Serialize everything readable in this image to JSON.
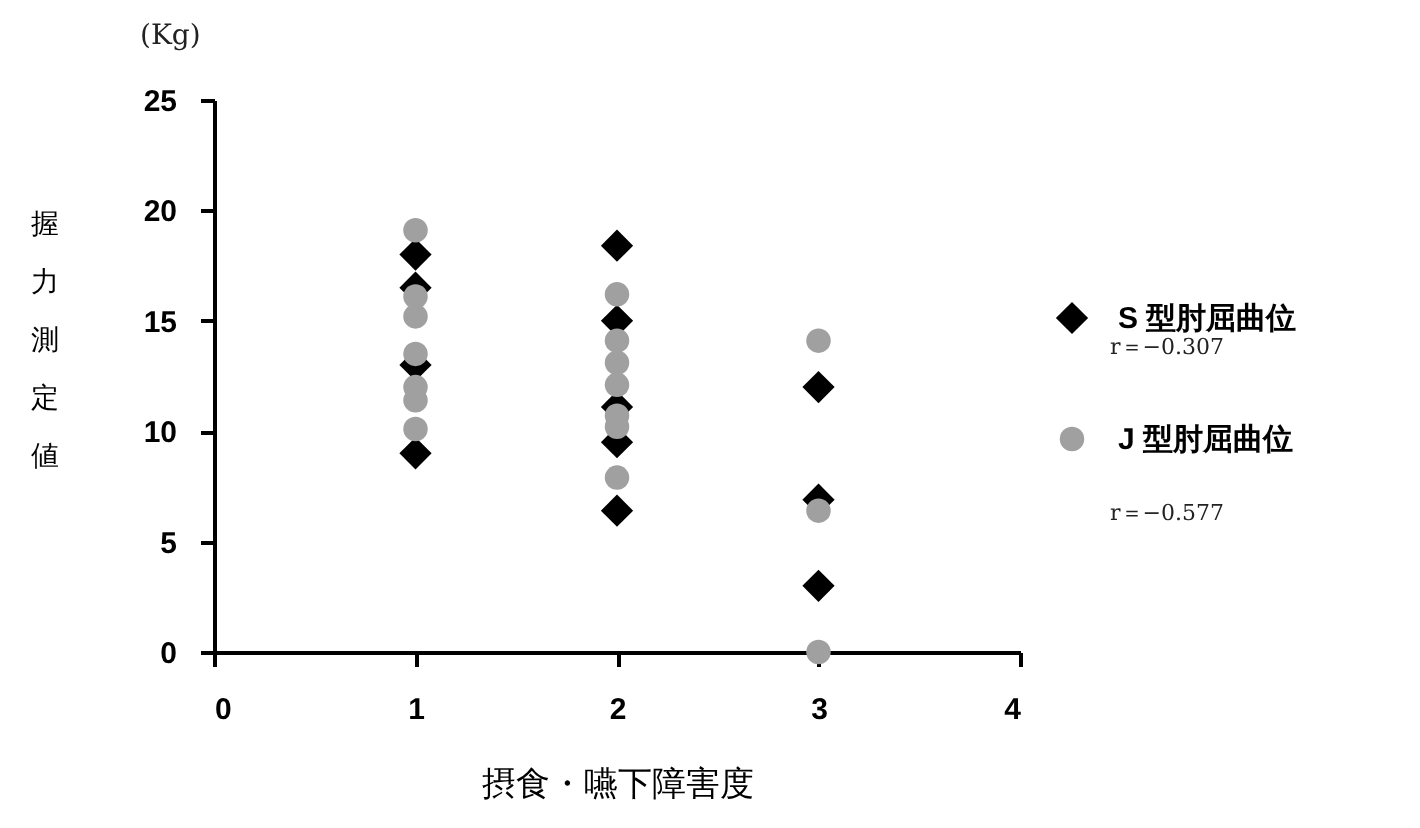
{
  "chart_data": {
    "type": "scatter",
    "xlabel": "摂食・嚥下障害度",
    "ylabel": "握力測定値",
    "annotations": [
      "(Kg)",
      "r＝−0.307",
      "r＝−0.577"
    ],
    "xlim": [
      0,
      4
    ],
    "xticks": [
      0,
      1,
      2,
      3,
      4
    ],
    "ylim": [
      0,
      25
    ],
    "yticks": [
      0,
      5,
      10,
      15,
      20,
      25
    ],
    "legend": "right",
    "series": [
      {
        "name": "S 型肘屈曲位",
        "color": "#000000",
        "marker": "diamond",
        "x": [
          1,
          1,
          1,
          1,
          2,
          2,
          2,
          2,
          2,
          3,
          3,
          3
        ],
        "values": [
          18,
          16.5,
          13,
          9,
          18.4,
          15,
          11.1,
          9.5,
          6.4,
          12,
          6.9,
          3
        ]
      },
      {
        "name": "J 型肘屈曲位",
        "color": "#a0a0a0",
        "marker": "circle",
        "x": [
          1,
          1,
          1,
          1,
          1,
          1,
          1,
          2,
          2,
          2,
          2,
          2,
          2,
          2,
          3,
          3,
          3
        ],
        "values": [
          19.1,
          16.1,
          15.2,
          13.5,
          12,
          11.4,
          10.1,
          16.2,
          14.1,
          13.1,
          12.1,
          10.7,
          10.2,
          7.9,
          14.1,
          6.4,
          0
        ]
      }
    ]
  }
}
